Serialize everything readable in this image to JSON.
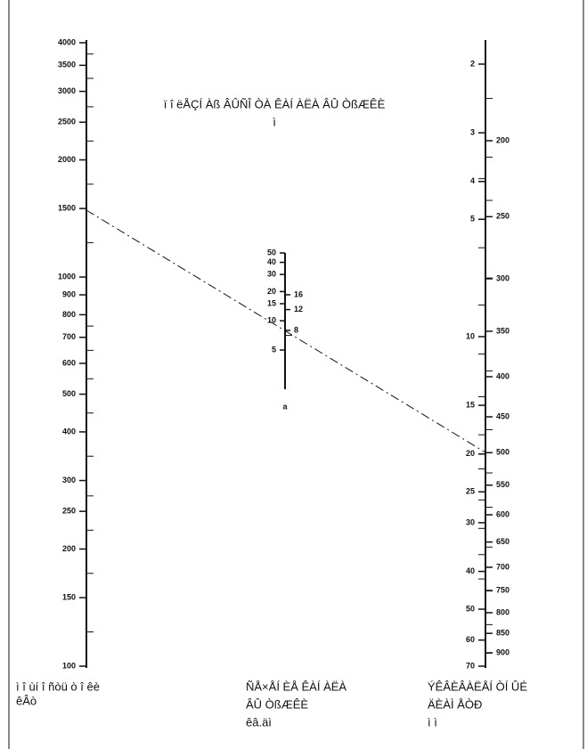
{
  "title": {
    "line1": "ï î ëÅÇÍ Àß ÂÛÑÎ ÒÀ ÊÀÍ ÀËÀ ÂÛ ÒßÆÊÈ",
    "line2": "ì"
  },
  "left_scale": {
    "ticks": [
      4000,
      3500,
      3000,
      2500,
      2000,
      1500,
      1000,
      900,
      800,
      700,
      600,
      500,
      400,
      300,
      250,
      200,
      150,
      100
    ],
    "caption": [
      "ì î ùí î ñòü ò î êè",
      "êÂò"
    ]
  },
  "middle_scale": {
    "left_ticks": [
      50,
      40,
      30,
      20,
      15,
      10,
      5
    ],
    "right_ticks": [
      16,
      12,
      8
    ],
    "note": "a",
    "caption": [
      "ÑÅ×ÅÍ ÈÅ ÊÀÍ ÀËÀ",
      "ÂÛ ÒßÆÊÈ",
      "êâ.äì"
    ]
  },
  "right_scale": {
    "left_ticks": [
      2,
      3,
      4,
      5,
      10,
      15,
      20,
      25,
      30,
      40,
      50,
      60,
      70
    ],
    "right_ticks": [
      200,
      250,
      300,
      350,
      400,
      450,
      500,
      550,
      600,
      650,
      700,
      750,
      800,
      850,
      900
    ],
    "caption": [
      "ÝÊÂÈÂÀËÅÍ ÒÍ ÛÉ",
      "ÄÈÀÌ ÅÒÐ",
      "ì ì"
    ]
  }
}
